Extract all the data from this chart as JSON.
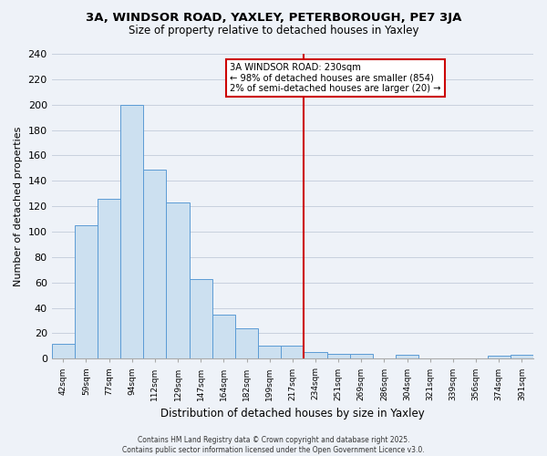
{
  "title_line1": "3A, WINDSOR ROAD, YAXLEY, PETERBOROUGH, PE7 3JA",
  "title_line2": "Size of property relative to detached houses in Yaxley",
  "xlabel": "Distribution of detached houses by size in Yaxley",
  "ylabel": "Number of detached properties",
  "bar_labels": [
    "42sqm",
    "59sqm",
    "77sqm",
    "94sqm",
    "112sqm",
    "129sqm",
    "147sqm",
    "164sqm",
    "182sqm",
    "199sqm",
    "217sqm",
    "234sqm",
    "251sqm",
    "269sqm",
    "286sqm",
    "304sqm",
    "321sqm",
    "339sqm",
    "356sqm",
    "374sqm",
    "391sqm"
  ],
  "bar_values": [
    12,
    105,
    126,
    200,
    149,
    123,
    63,
    35,
    24,
    10,
    10,
    5,
    4,
    4,
    0,
    3,
    0,
    0,
    0,
    2,
    3
  ],
  "bar_color": "#cce0f0",
  "bar_edge_color": "#5b9bd5",
  "vline_x_index": 10.5,
  "vline_color": "#cc0000",
  "annotation_title": "3A WINDSOR ROAD: 230sqm",
  "annotation_line1": "← 98% of detached houses are smaller (854)",
  "annotation_line2": "2% of semi-detached houses are larger (20) →",
  "annotation_box_color": "#ffffff",
  "annotation_box_edge": "#cc0000",
  "grid_color": "#c8d0de",
  "background_color": "#eef2f8",
  "ylim": [
    0,
    240
  ],
  "yticks": [
    0,
    20,
    40,
    60,
    80,
    100,
    120,
    140,
    160,
    180,
    200,
    220,
    240
  ],
  "footer_line1": "Contains HM Land Registry data © Crown copyright and database right 2025.",
  "footer_line2": "Contains public sector information licensed under the Open Government Licence v3.0."
}
